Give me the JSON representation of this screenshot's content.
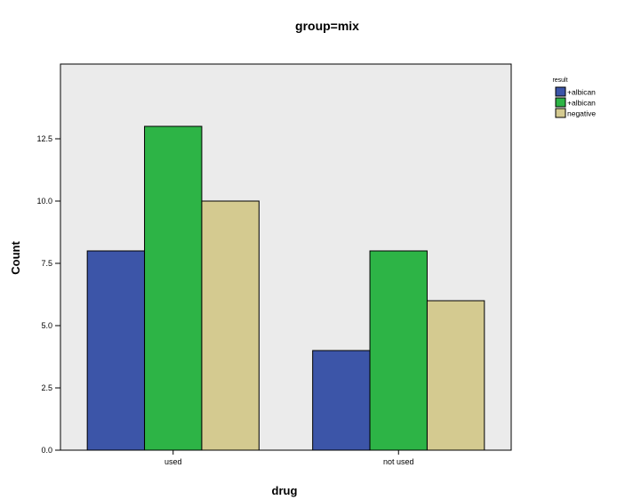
{
  "chart_data": {
    "type": "bar",
    "title": "group=mix",
    "xlabel": "drug",
    "ylabel": "Count",
    "categories": [
      "used",
      "not used"
    ],
    "series": [
      {
        "name": "+albican",
        "color": "#3c55a8",
        "values": [
          8,
          4
        ]
      },
      {
        "name": "+albican",
        "color": "#2db446",
        "values": [
          13,
          8
        ]
      },
      {
        "name": "negative",
        "color": "#d4ca90",
        "values": [
          10,
          6
        ]
      }
    ],
    "ylim": [
      0,
      15.5
    ],
    "yticks": [
      0,
      2.5,
      5,
      7.5,
      10,
      12.5
    ],
    "ytick_labels": [
      "0.0",
      "2.5",
      "5.0",
      "7.5",
      "10.0",
      "12.5"
    ],
    "legend_title": "result",
    "legend_position": "right",
    "plot_background": "#ebebeb",
    "grid": false
  }
}
